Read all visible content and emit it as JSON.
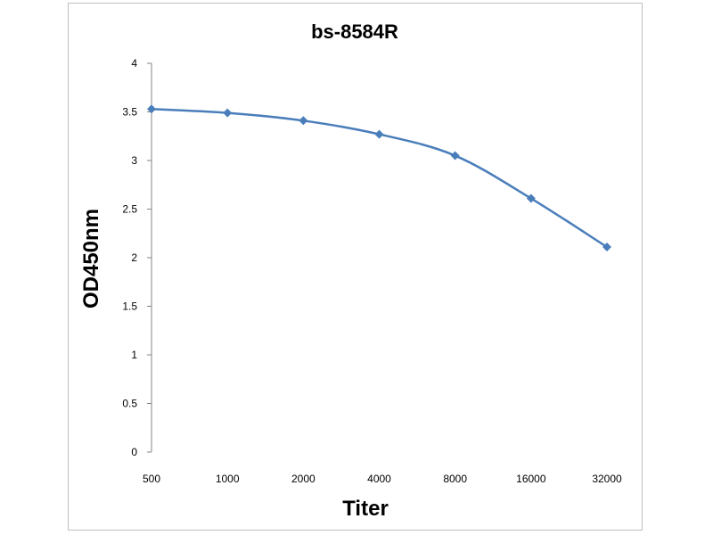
{
  "chart_data": {
    "type": "line",
    "title": "bs-8584R",
    "xlabel": "Titer",
    "ylabel": "OD450nm",
    "categories": [
      "500",
      "1000",
      "2000",
      "4000",
      "8000",
      "16000",
      "32000"
    ],
    "series": [
      {
        "values": [
          3.53,
          3.49,
          3.41,
          3.27,
          3.05,
          2.61,
          2.11
        ],
        "color": "#4a7ebb",
        "marker": "diamond"
      }
    ],
    "ylim": [
      0,
      4
    ],
    "yticks": [
      "0",
      "0.5",
      "1",
      "1.5",
      "2",
      "2.5",
      "3",
      "3.5",
      "4"
    ],
    "grid": false,
    "legend": "none",
    "smooth": true
  }
}
